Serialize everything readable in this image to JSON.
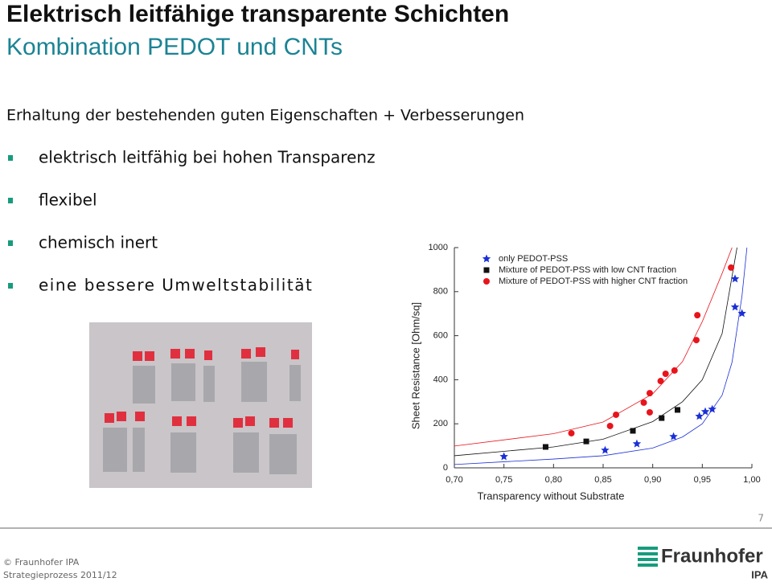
{
  "header": {
    "title": "Elektrisch leitfähige transparente Schichten",
    "subtitle": "Kombination PEDOT und CNTs"
  },
  "heading": "Erhaltung der bestehenden guten Eigenschaften + Verbesserungen",
  "bullets": [
    "elektrisch leitfähig bei hohen Transparenz",
    "flexibel",
    "chemisch inert",
    "eine bessere Umweltstabilität"
  ],
  "page_number": "7",
  "footer": {
    "copyright": "© Fraunhofer IPA",
    "project": "Strategieprozess 2011/12",
    "logo": "Fraunhofer",
    "logo_sub": "IPA"
  },
  "chart_data": {
    "type": "scatter",
    "x_label": "Transparency without Substrate",
    "y_label": "Sheet Resistance [Ohm/sq]",
    "xlim": [
      0.7,
      1.0
    ],
    "ylim": [
      0,
      1000
    ],
    "xticks": [
      {
        "value": 0.7,
        "label": "0,70"
      },
      {
        "value": 0.75,
        "label": "0,75"
      },
      {
        "value": 0.8,
        "label": "0,80"
      },
      {
        "value": 0.85,
        "label": "0,85"
      },
      {
        "value": 0.9,
        "label": "0,90"
      },
      {
        "value": 0.95,
        "label": "0,95"
      },
      {
        "value": 1.0,
        "label": "1,00"
      }
    ],
    "yticks": [
      0,
      200,
      400,
      600,
      800,
      1000
    ],
    "series": [
      {
        "name": "only PEDOT-PSS",
        "color": "#1a2fd6",
        "marker": "star",
        "x": [
          0.75,
          0.852,
          0.884,
          0.921,
          0.947,
          0.953,
          0.96,
          0.983,
          0.983,
          0.99
        ],
        "values": [
          51,
          80,
          109,
          142,
          234,
          255,
          266,
          730,
          858,
          701
        ]
      },
      {
        "name": "Mixture of PEDOT-PSS with low CNT fraction",
        "color": "#111111",
        "marker": "square",
        "x": [
          0.792,
          0.833,
          0.88,
          0.909,
          0.925
        ],
        "values": [
          95,
          120,
          168,
          226,
          263
        ]
      },
      {
        "name": "Mixture of PEDOT-PSS with higher CNT fraction",
        "color": "#e8141c",
        "marker": "circle",
        "x": [
          0.818,
          0.857,
          0.863,
          0.891,
          0.897,
          0.897,
          0.908,
          0.913,
          0.922,
          0.944,
          0.945,
          0.979
        ],
        "values": [
          157,
          190,
          241,
          296,
          339,
          252,
          394,
          427,
          442,
          580,
          693,
          909
        ]
      }
    ],
    "fits": [
      {
        "color": "#e8141c",
        "x": [
          0.7,
          0.8,
          0.85,
          0.9,
          0.93,
          0.95,
          0.97,
          0.98
        ],
        "values": [
          99,
          155,
          208,
          336,
          482,
          664,
          883,
          1000
        ]
      },
      {
        "color": "#111111",
        "x": [
          0.7,
          0.8,
          0.85,
          0.9,
          0.93,
          0.95,
          0.97,
          0.985
        ],
        "values": [
          55,
          95,
          130,
          210,
          300,
          400,
          610,
          1000
        ]
      },
      {
        "color": "#1a2fd6",
        "x": [
          0.7,
          0.8,
          0.85,
          0.9,
          0.93,
          0.95,
          0.97,
          0.98,
          0.99,
          0.995
        ],
        "values": [
          15,
          40,
          55,
          90,
          140,
          200,
          330,
          480,
          780,
          1000
        ]
      }
    ]
  }
}
